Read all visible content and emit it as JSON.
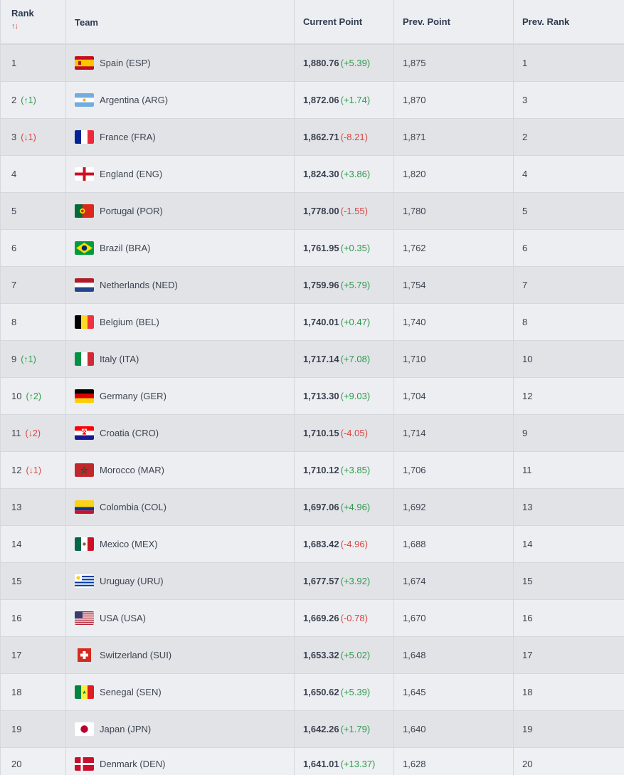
{
  "header": {
    "rank": "Rank",
    "sort_up": "↑",
    "sort_down": "↓",
    "team": "Team",
    "current_point": "Current Point",
    "prev_point": "Prev. Point",
    "prev_rank": "Prev. Rank"
  },
  "rows": [
    {
      "rank": "1",
      "change": "",
      "change_dir": "",
      "team": "Spain (ESP)",
      "flag": "spain-flag-icon",
      "points": "1,880.76",
      "delta": "(+5.39)",
      "prev_points": "1,875",
      "prev_rank": "1"
    },
    {
      "rank": "2",
      "change": "(↑1)",
      "change_dir": "up",
      "team": "Argentina (ARG)",
      "flag": "argentina-flag-icon",
      "points": "1,872.06",
      "delta": "(+1.74)",
      "prev_points": "1,870",
      "prev_rank": "3"
    },
    {
      "rank": "3",
      "change": "(↓1)",
      "change_dir": "down",
      "team": "France (FRA)",
      "flag": "france-flag-icon",
      "points": "1,862.71",
      "delta": "(-8.21)",
      "prev_points": "1,871",
      "prev_rank": "2"
    },
    {
      "rank": "4",
      "change": "",
      "change_dir": "",
      "team": "England (ENG)",
      "flag": "england-flag-icon",
      "points": "1,824.30",
      "delta": "(+3.86)",
      "prev_points": "1,820",
      "prev_rank": "4"
    },
    {
      "rank": "5",
      "change": "",
      "change_dir": "",
      "team": "Portugal (POR)",
      "flag": "portugal-flag-icon",
      "points": "1,778.00",
      "delta": "(-1.55)",
      "prev_points": "1,780",
      "prev_rank": "5"
    },
    {
      "rank": "6",
      "change": "",
      "change_dir": "",
      "team": "Brazil (BRA)",
      "flag": "brazil-flag-icon",
      "points": "1,761.95",
      "delta": "(+0.35)",
      "prev_points": "1,762",
      "prev_rank": "6"
    },
    {
      "rank": "7",
      "change": "",
      "change_dir": "",
      "team": "Netherlands (NED)",
      "flag": "netherlands-flag-icon",
      "points": "1,759.96",
      "delta": "(+5.79)",
      "prev_points": "1,754",
      "prev_rank": "7"
    },
    {
      "rank": "8",
      "change": "",
      "change_dir": "",
      "team": "Belgium (BEL)",
      "flag": "belgium-flag-icon",
      "points": "1,740.01",
      "delta": "(+0.47)",
      "prev_points": "1,740",
      "prev_rank": "8"
    },
    {
      "rank": "9",
      "change": "(↑1)",
      "change_dir": "up",
      "team": "Italy (ITA)",
      "flag": "italy-flag-icon",
      "points": "1,717.14",
      "delta": "(+7.08)",
      "prev_points": "1,710",
      "prev_rank": "10"
    },
    {
      "rank": "10",
      "change": "(↑2)",
      "change_dir": "up",
      "team": "Germany (GER)",
      "flag": "germany-flag-icon",
      "points": "1,713.30",
      "delta": "(+9.03)",
      "prev_points": "1,704",
      "prev_rank": "12"
    },
    {
      "rank": "11",
      "change": "(↓2)",
      "change_dir": "down",
      "team": "Croatia (CRO)",
      "flag": "croatia-flag-icon",
      "points": "1,710.15",
      "delta": "(-4.05)",
      "prev_points": "1,714",
      "prev_rank": "9"
    },
    {
      "rank": "12",
      "change": "(↓1)",
      "change_dir": "down",
      "team": "Morocco (MAR)",
      "flag": "morocco-flag-icon",
      "points": "1,710.12",
      "delta": "(+3.85)",
      "prev_points": "1,706",
      "prev_rank": "11"
    },
    {
      "rank": "13",
      "change": "",
      "change_dir": "",
      "team": "Colombia (COL)",
      "flag": "colombia-flag-icon",
      "points": "1,697.06",
      "delta": "(+4.96)",
      "prev_points": "1,692",
      "prev_rank": "13"
    },
    {
      "rank": "14",
      "change": "",
      "change_dir": "",
      "team": "Mexico (MEX)",
      "flag": "mexico-flag-icon",
      "points": "1,683.42",
      "delta": "(-4.96)",
      "prev_points": "1,688",
      "prev_rank": "14"
    },
    {
      "rank": "15",
      "change": "",
      "change_dir": "",
      "team": "Uruguay (URU)",
      "flag": "uruguay-flag-icon",
      "points": "1,677.57",
      "delta": "(+3.92)",
      "prev_points": "1,674",
      "prev_rank": "15"
    },
    {
      "rank": "16",
      "change": "",
      "change_dir": "",
      "team": "USA (USA)",
      "flag": "usa-flag-icon",
      "points": "1,669.26",
      "delta": "(-0.78)",
      "prev_points": "1,670",
      "prev_rank": "16"
    },
    {
      "rank": "17",
      "change": "",
      "change_dir": "",
      "team": "Switzerland (SUI)",
      "flag": "switzerland-flag-icon",
      "points": "1,653.32",
      "delta": "(+5.02)",
      "prev_points": "1,648",
      "prev_rank": "17"
    },
    {
      "rank": "18",
      "change": "",
      "change_dir": "",
      "team": "Senegal (SEN)",
      "flag": "senegal-flag-icon",
      "points": "1,650.62",
      "delta": "(+5.39)",
      "prev_points": "1,645",
      "prev_rank": "18"
    },
    {
      "rank": "19",
      "change": "",
      "change_dir": "",
      "team": "Japan (JPN)",
      "flag": "japan-flag-icon",
      "points": "1,642.26",
      "delta": "(+1.79)",
      "prev_points": "1,640",
      "prev_rank": "19"
    },
    {
      "rank": "20",
      "change": "",
      "change_dir": "",
      "team": "Denmark (DEN)",
      "flag": "denmark-flag-icon",
      "points": "1,641.01",
      "delta": "(+13.37)",
      "prev_points": "1,628",
      "prev_rank": "20"
    }
  ]
}
